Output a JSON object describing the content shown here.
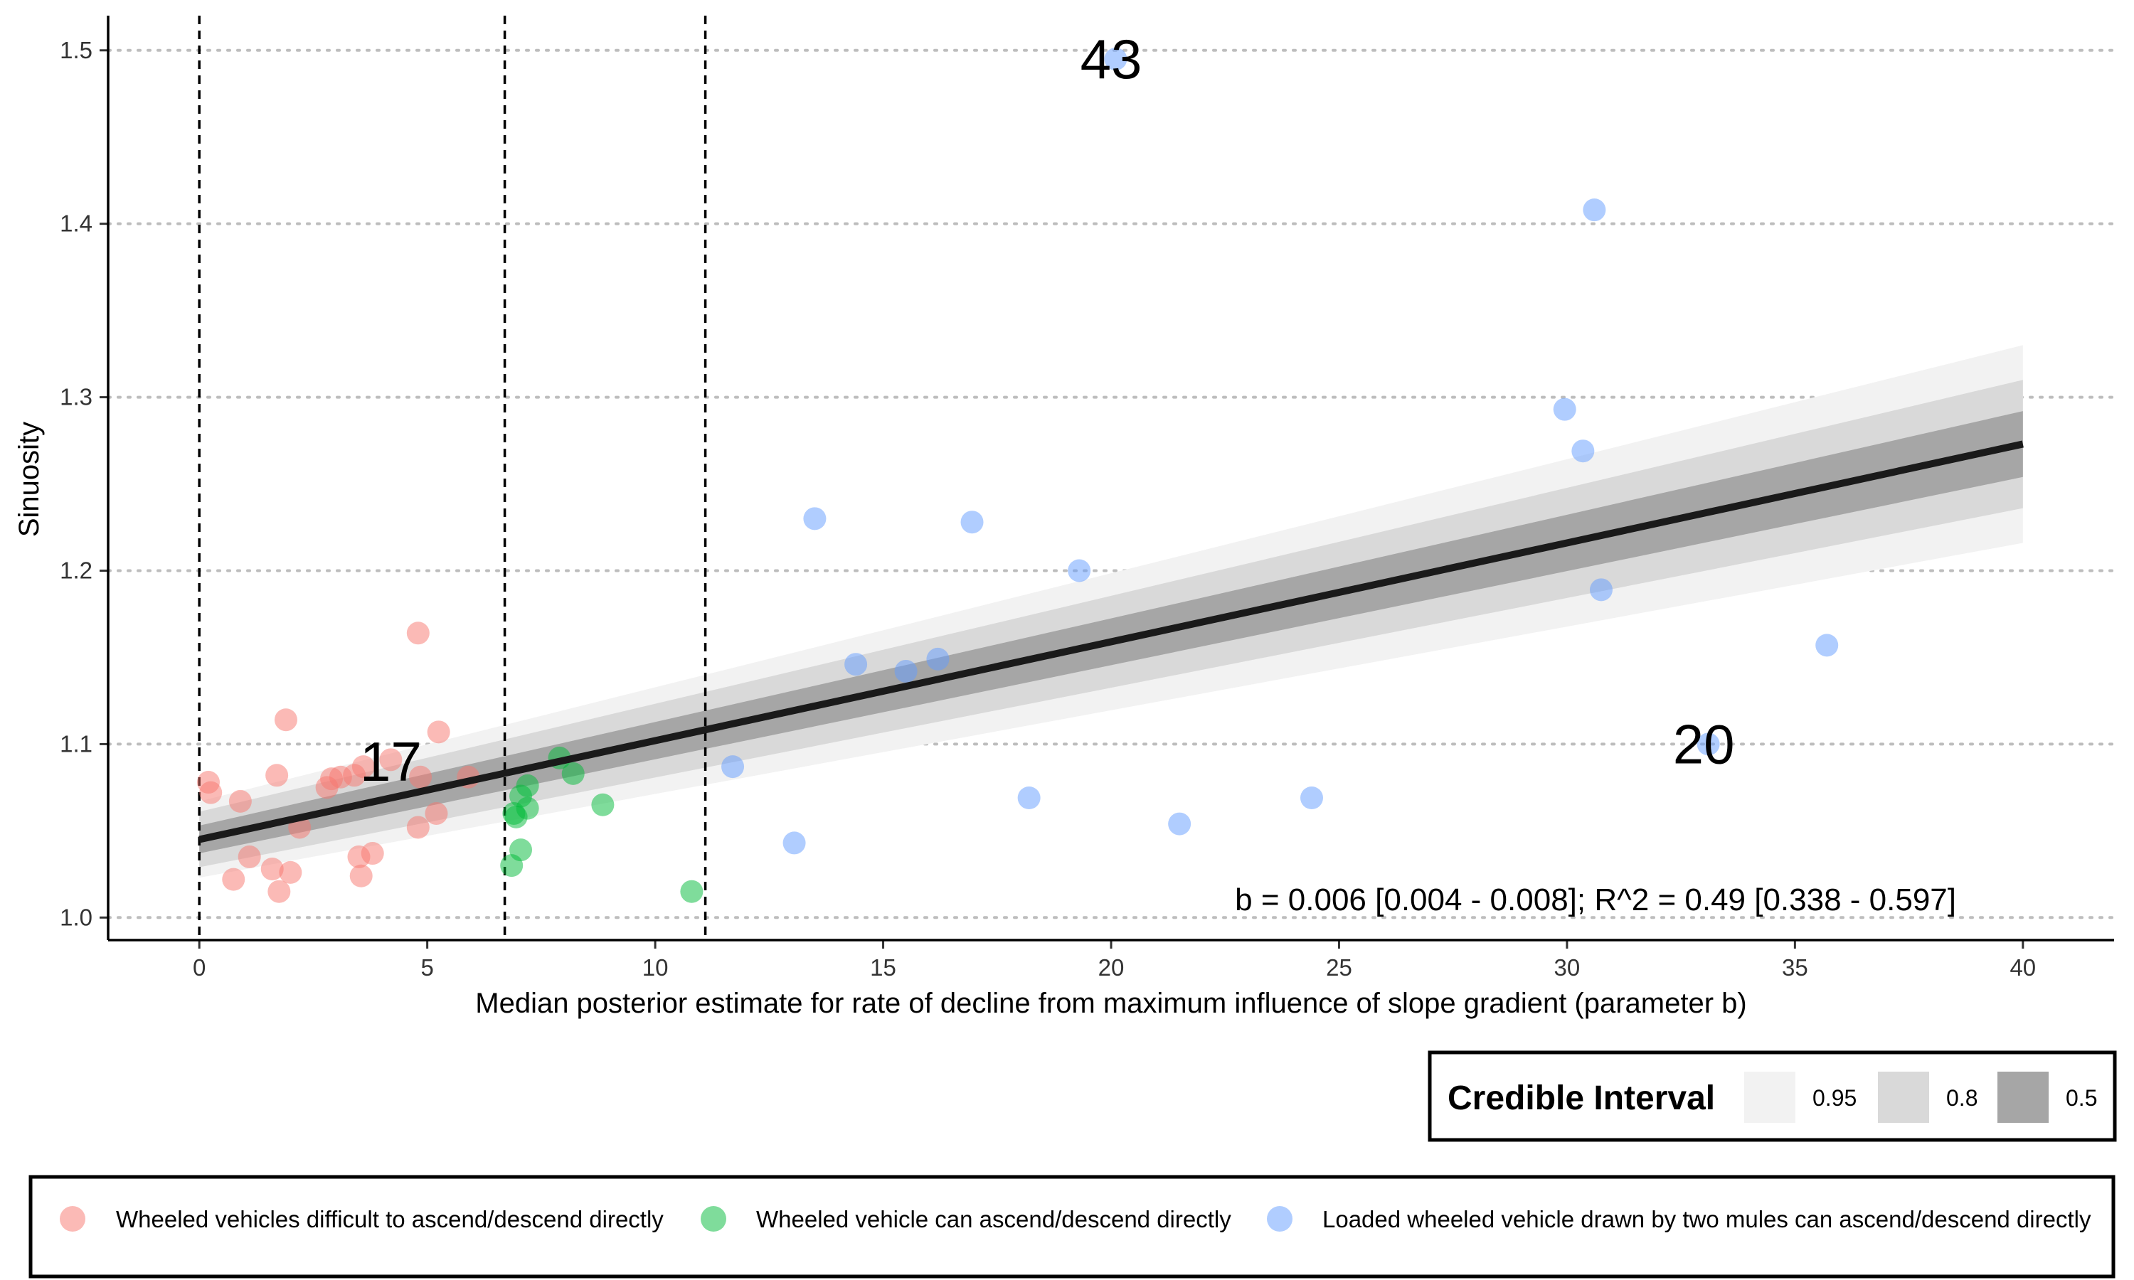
{
  "chart_data": {
    "type": "scatter",
    "title": "",
    "xlabel": "Median posterior estimate for rate of decline from maximum influence of slope gradient (parameter b)",
    "ylabel": "Sinuosity",
    "xlim": [
      -2,
      42
    ],
    "ylim": [
      0.987,
      1.52
    ],
    "x_ticks": [
      "0",
      "5",
      "10",
      "15",
      "20",
      "25",
      "30",
      "35",
      "40"
    ],
    "y_ticks": [
      "1.0",
      "1.1",
      "1.2",
      "1.3",
      "1.4",
      "1.5"
    ],
    "grid": "horizontal dotted",
    "vlines": [
      0,
      6.7,
      11.1
    ],
    "series": [
      {
        "name": "Wheeled vehicles difficult to ascend/descend directly",
        "color": "#F8766D",
        "points": [
          [
            0.2,
            1.078
          ],
          [
            0.25,
            1.072
          ],
          [
            0.9,
            1.067
          ],
          [
            0.75,
            1.022
          ],
          [
            1.1,
            1.035
          ],
          [
            1.6,
            1.028
          ],
          [
            1.7,
            1.082
          ],
          [
            1.75,
            1.015
          ],
          [
            1.9,
            1.114
          ],
          [
            2.0,
            1.026
          ],
          [
            2.2,
            1.052
          ],
          [
            2.8,
            1.075
          ],
          [
            2.9,
            1.08
          ],
          [
            3.1,
            1.081
          ],
          [
            3.4,
            1.082
          ],
          [
            3.5,
            1.035
          ],
          [
            3.55,
            1.024
          ],
          [
            3.6,
            1.087
          ],
          [
            3.8,
            1.037
          ],
          [
            4.2,
            1.091
          ],
          [
            4.8,
            1.164
          ],
          [
            4.8,
            1.052
          ],
          [
            4.85,
            1.081
          ],
          [
            5.2,
            1.06
          ],
          [
            5.25,
            1.107
          ],
          [
            5.9,
            1.081
          ]
        ]
      },
      {
        "name": "Wheeled vehicle can ascend/descend directly",
        "color": "#00BA38",
        "points": [
          [
            6.85,
            1.03
          ],
          [
            6.9,
            1.06
          ],
          [
            6.95,
            1.058
          ],
          [
            7.05,
            1.039
          ],
          [
            7.2,
            1.063
          ],
          [
            7.2,
            1.076
          ],
          [
            7.05,
            1.07
          ],
          [
            8.2,
            1.083
          ],
          [
            8.85,
            1.065
          ],
          [
            10.8,
            1.015
          ],
          [
            7.9,
            1.092
          ]
        ]
      },
      {
        "name": "Loaded wheeled vehicle drawn by two mules can ascend/descend directly",
        "color": "#619CFF",
        "points": [
          [
            11.7,
            1.087
          ],
          [
            13.05,
            1.043
          ],
          [
            13.5,
            1.23
          ],
          [
            14.4,
            1.146
          ],
          [
            15.5,
            1.142
          ],
          [
            16.2,
            1.149
          ],
          [
            16.95,
            1.228
          ],
          [
            18.2,
            1.069
          ],
          [
            19.3,
            1.2
          ],
          [
            20.1,
            1.495
          ],
          [
            21.5,
            1.054
          ],
          [
            24.4,
            1.069
          ],
          [
            29.95,
            1.293
          ],
          [
            30.35,
            1.269
          ],
          [
            30.6,
            1.408
          ],
          [
            30.75,
            1.189
          ],
          [
            33.1,
            1.1
          ],
          [
            35.7,
            1.157
          ]
        ]
      }
    ],
    "regression": {
      "intercept": 1.045,
      "slope": 0.0057,
      "x_range": [
        0,
        40
      ],
      "bands": [
        {
          "level": "0.95",
          "color": "#F2F2F2",
          "half_width_start": 0.022,
          "half_width_end": 0.057
        },
        {
          "level": "0.8",
          "color": "#D9D9D9",
          "half_width_start": 0.016,
          "half_width_end": 0.037
        },
        {
          "level": "0.5",
          "color": "#A6A6A6",
          "half_width_start": 0.008,
          "half_width_end": 0.019
        }
      ]
    },
    "count_labels": [
      {
        "text": "17",
        "x": 4.2,
        "y": 1.09
      },
      {
        "text": "43",
        "x": 20.0,
        "y": 1.495
      },
      {
        "text": "20",
        "x": 33.0,
        "y": 1.1
      }
    ],
    "annotation": "b = 0.006 [0.004 - 0.008]; R^2 = 0.49 [0.338 - 0.597]"
  },
  "legend_ci": {
    "title": "Credible Interval",
    "items": [
      {
        "label": "0.95",
        "color": "#F2F2F2"
      },
      {
        "label": "0.8",
        "color": "#D9D9D9"
      },
      {
        "label": "0.5",
        "color": "#A6A6A6"
      }
    ]
  },
  "legend_groups": {
    "items": [
      {
        "label": "Wheeled vehicles difficult to ascend/descend directly",
        "color": "#F8766D"
      },
      {
        "label": "Wheeled vehicle can ascend/descend directly",
        "color": "#00BA38"
      },
      {
        "label": "Loaded wheeled vehicle drawn by two mules can ascend/descend directly",
        "color": "#619CFF"
      }
    ]
  }
}
